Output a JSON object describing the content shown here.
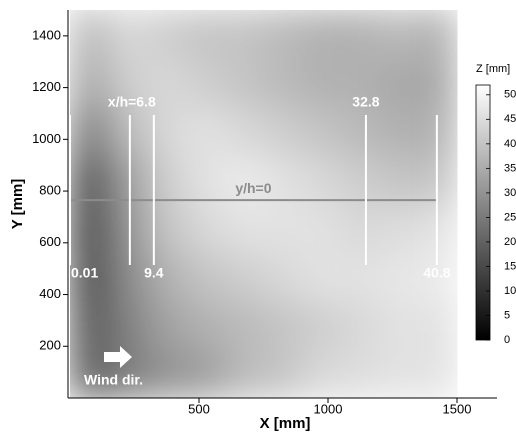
{
  "chart_data": {
    "type": "heatmap",
    "xlabel": "X [mm]",
    "ylabel": "Y [mm]",
    "xlim": [
      0,
      1500
    ],
    "ylim": [
      0,
      1500
    ],
    "xticks": [
      500,
      1000,
      1500
    ],
    "yticks": [
      200,
      400,
      600,
      800,
      1000,
      1200,
      1400
    ],
    "x_edges": [
      0,
      150,
      300,
      450,
      600,
      750,
      900,
      1050,
      1200,
      1350,
      1500
    ],
    "y_edges": [
      0,
      187.5,
      375,
      562.5,
      750,
      937.5,
      1125,
      1312.5,
      1500
    ],
    "z": [
      [
        20,
        25,
        30,
        32,
        38,
        40,
        44,
        45,
        46,
        46
      ],
      [
        18,
        26,
        33,
        36,
        38,
        40,
        42,
        44,
        46,
        46
      ],
      [
        15,
        28,
        36,
        40,
        42,
        44,
        46,
        46,
        47,
        48
      ],
      [
        14,
        30,
        40,
        44,
        46,
        46,
        46,
        44,
        45,
        46
      ],
      [
        16,
        32,
        42,
        46,
        48,
        46,
        44,
        42,
        40,
        40
      ],
      [
        25,
        38,
        44,
        46,
        44,
        42,
        40,
        38,
        36,
        36
      ],
      [
        34,
        42,
        44,
        42,
        40,
        38,
        36,
        36,
        34,
        34
      ],
      [
        38,
        44,
        42,
        40,
        40,
        38,
        36,
        36,
        38,
        36
      ]
    ],
    "colorbar": {
      "label": "Z [mm]",
      "lim": [
        0,
        52
      ],
      "ticks": [
        0,
        5,
        10,
        15,
        20,
        25,
        30,
        35,
        40,
        45,
        50
      ]
    },
    "profiles": {
      "y_range": [
        514,
        1094
      ],
      "color": "#ffffff",
      "lines": [
        {
          "x": 0,
          "label": "0.01"
        },
        {
          "x": 232,
          "label": "x/h=6.8"
        },
        {
          "x": 325,
          "label": "9.4"
        },
        {
          "x": 1147,
          "label": "32.8"
        },
        {
          "x": 1422,
          "label": "40.8"
        }
      ]
    },
    "transect": {
      "y": 765,
      "x_range": [
        0,
        1422
      ],
      "label": "y/h=0",
      "color": "#8c8c8c"
    },
    "wind_label": "Wind dir."
  }
}
